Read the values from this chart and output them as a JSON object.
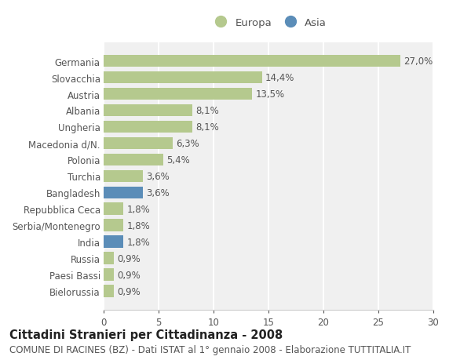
{
  "categories": [
    "Germania",
    "Slovacchia",
    "Austria",
    "Albania",
    "Ungheria",
    "Macedonia d/N.",
    "Polonia",
    "Turchia",
    "Bangladesh",
    "Repubblica Ceca",
    "Serbia/Montenegro",
    "India",
    "Russia",
    "Paesi Bassi",
    "Bielorussia"
  ],
  "values": [
    27.0,
    14.4,
    13.5,
    8.1,
    8.1,
    6.3,
    5.4,
    3.6,
    3.6,
    1.8,
    1.8,
    1.8,
    0.9,
    0.9,
    0.9
  ],
  "labels": [
    "27,0%",
    "14,4%",
    "13,5%",
    "8,1%",
    "8,1%",
    "6,3%",
    "5,4%",
    "3,6%",
    "3,6%",
    "1,8%",
    "1,8%",
    "1,8%",
    "0,9%",
    "0,9%",
    "0,9%"
  ],
  "colors": [
    "#b5c98e",
    "#b5c98e",
    "#b5c98e",
    "#b5c98e",
    "#b5c98e",
    "#b5c98e",
    "#b5c98e",
    "#b5c98e",
    "#5b8db8",
    "#b5c98e",
    "#b5c98e",
    "#5b8db8",
    "#b5c98e",
    "#b5c98e",
    "#b5c98e"
  ],
  "europa_color": "#b5c98e",
  "asia_color": "#5b8db8",
  "title": "Cittadini Stranieri per Cittadinanza - 2008",
  "subtitle": "COMUNE DI RACINES (BZ) - Dati ISTAT al 1° gennaio 2008 - Elaborazione TUTTITALIA.IT",
  "xlim": [
    0,
    30
  ],
  "xticks": [
    0,
    5,
    10,
    15,
    20,
    25,
    30
  ],
  "background_color": "#ffffff",
  "plot_bg_color": "#f0f0f0",
  "grid_color": "#ffffff",
  "bar_height": 0.75,
  "title_fontsize": 10.5,
  "subtitle_fontsize": 8.5,
  "label_fontsize": 8.5,
  "tick_fontsize": 8.5,
  "legend_fontsize": 9.5
}
